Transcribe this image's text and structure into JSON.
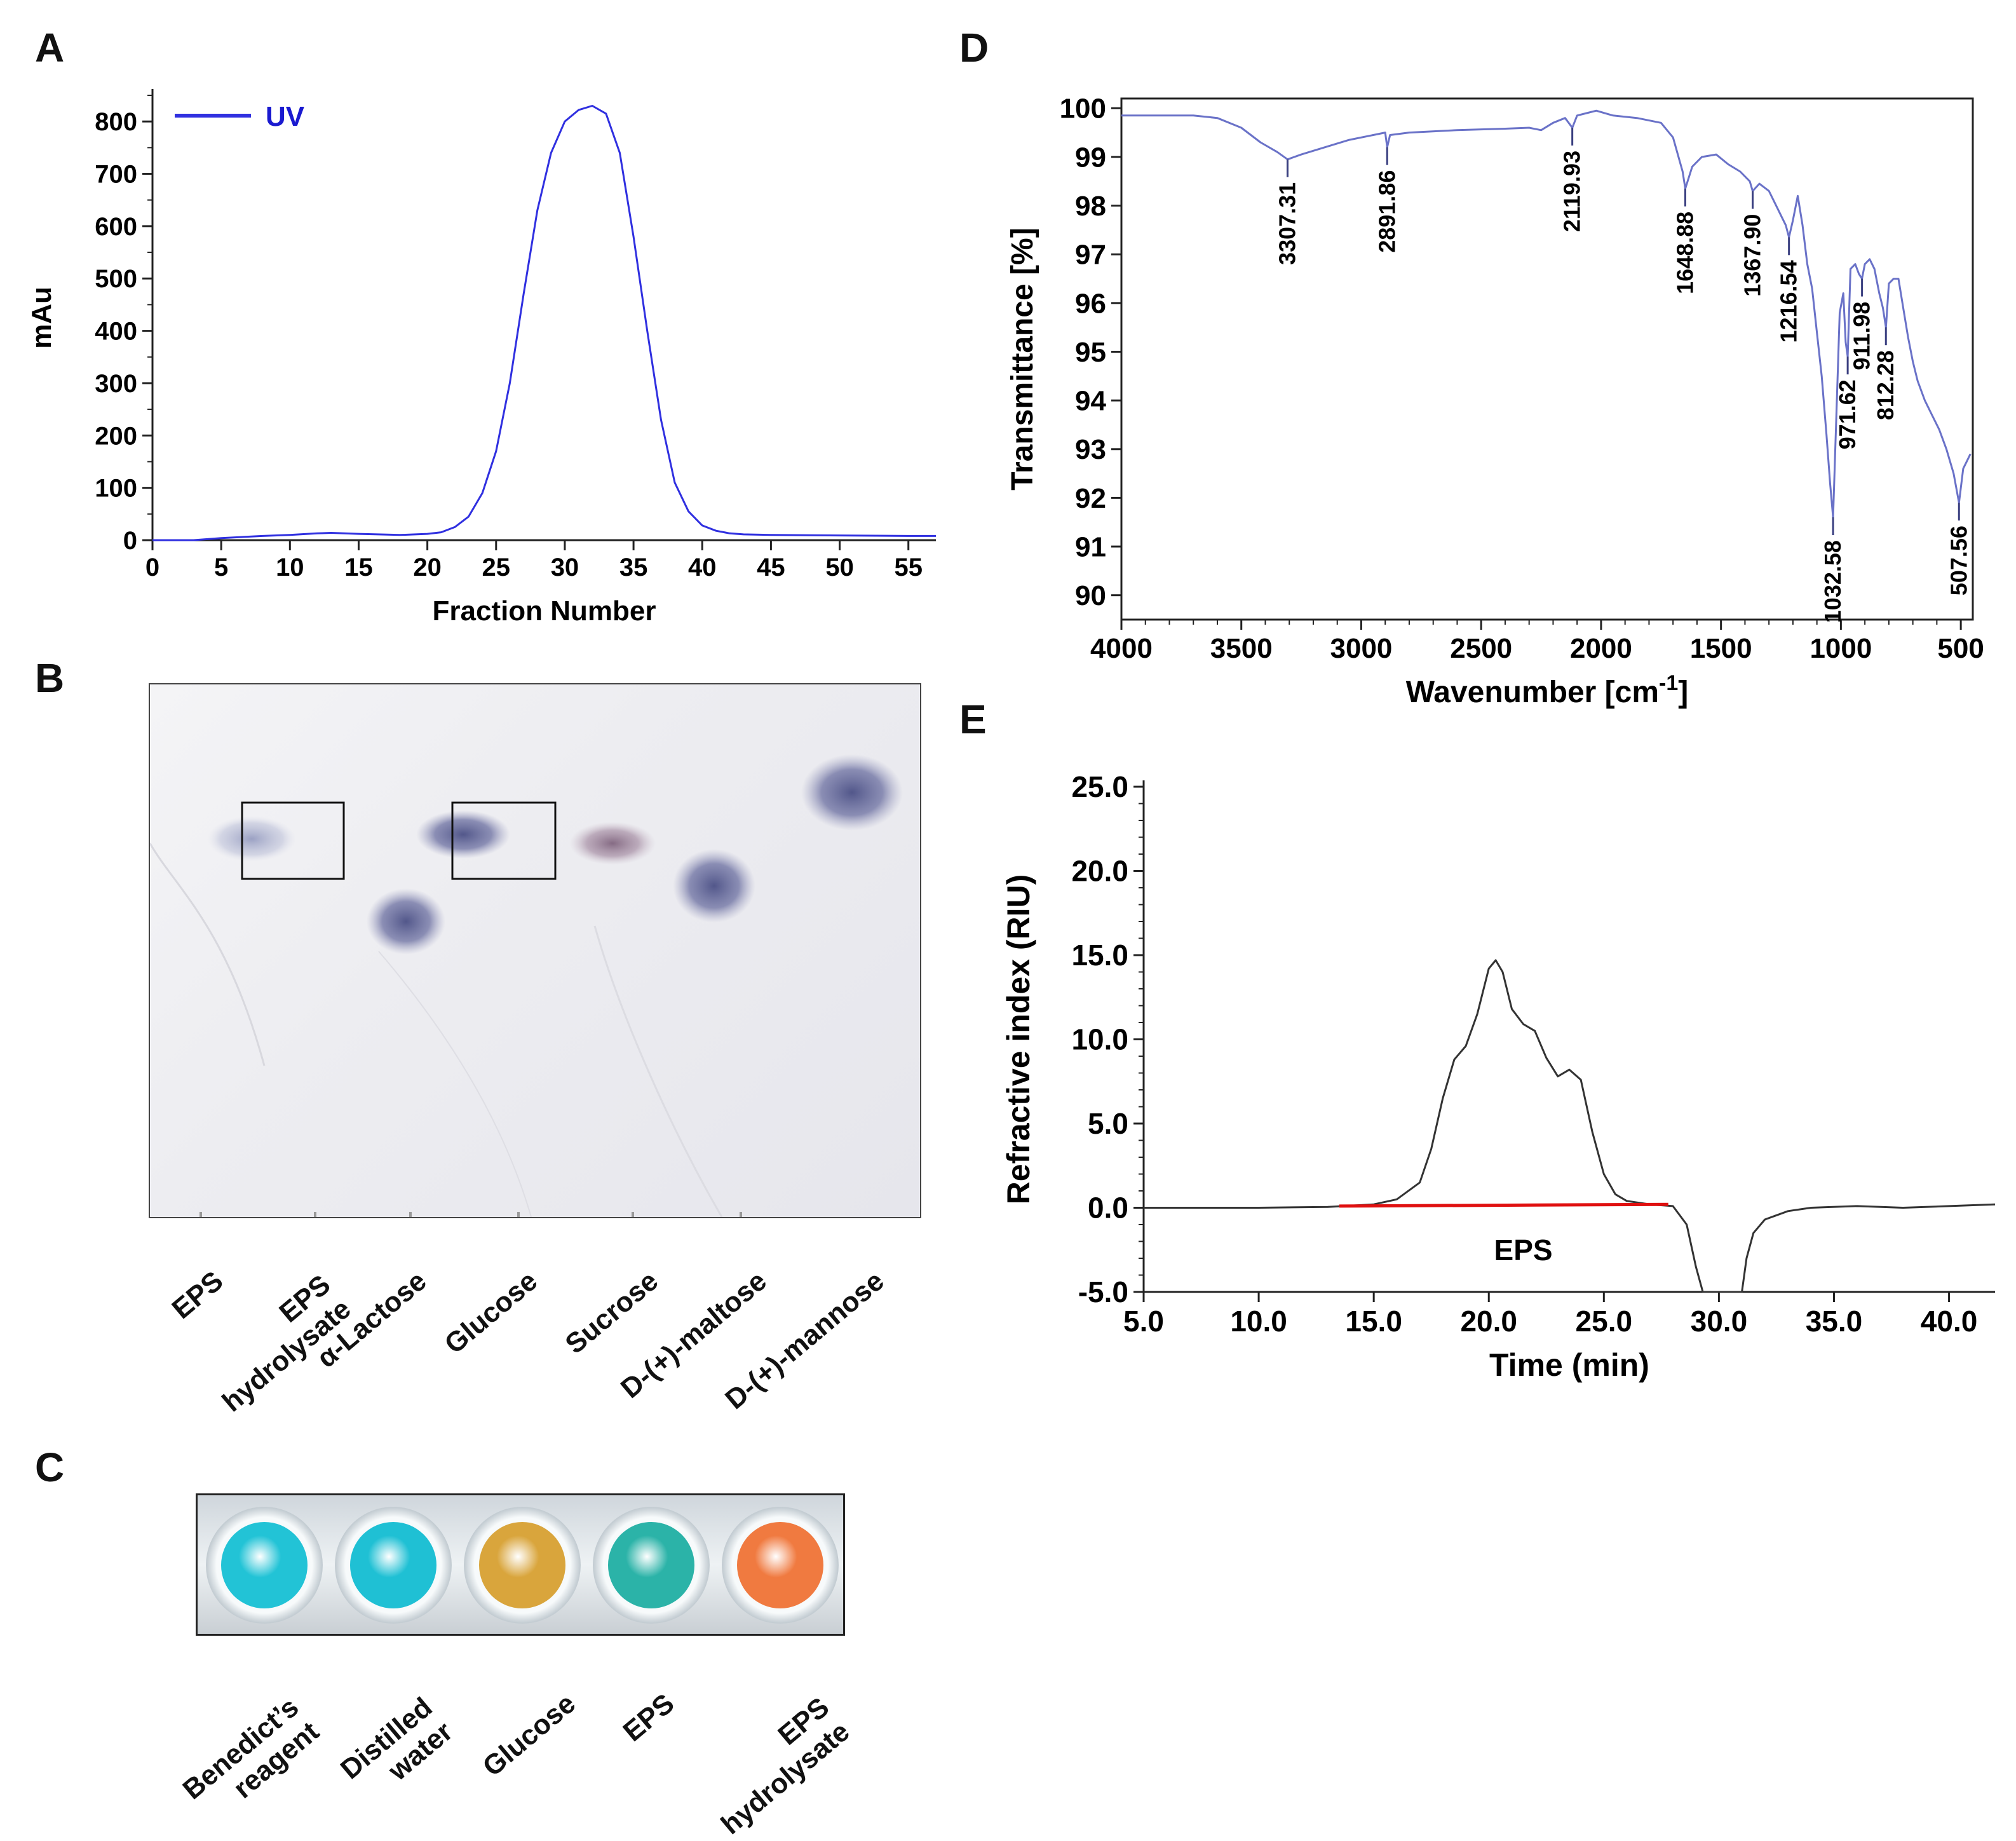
{
  "panels": {
    "A": "A",
    "B": "B",
    "C": "C",
    "D": "D",
    "E": "E"
  },
  "colors": {
    "uv_line": "#3030e0",
    "ftir_line": "#6a72c8",
    "ri_line": "#333333",
    "baseline": "#e01010",
    "legend_text": "#1a1ad0"
  },
  "chart_data": [
    {
      "id": "A",
      "type": "line",
      "title": "",
      "xlabel": "Fraction Number",
      "ylabel": "mAu",
      "xlim": [
        0,
        57
      ],
      "ylim": [
        0,
        850
      ],
      "xticks": [
        "0",
        "5",
        "10",
        "15",
        "20",
        "25",
        "30",
        "35",
        "40",
        "45",
        "50",
        "55"
      ],
      "yticks": [
        "0",
        "100",
        "200",
        "300",
        "400",
        "500",
        "600",
        "700",
        "800"
      ],
      "legend": {
        "label": "UV",
        "position": "top-left"
      },
      "series": [
        {
          "name": "UV",
          "x": [
            0,
            3,
            5,
            8,
            10,
            12,
            13,
            15,
            18,
            20,
            21,
            22,
            23,
            24,
            25,
            26,
            27,
            28,
            29,
            30,
            31,
            32,
            33,
            34,
            35,
            36,
            37,
            38,
            39,
            40,
            41,
            42,
            43,
            45,
            50,
            55,
            57
          ],
          "y": [
            0,
            0,
            4,
            8,
            10,
            13,
            14,
            12,
            10,
            12,
            15,
            25,
            45,
            90,
            170,
            300,
            470,
            630,
            740,
            800,
            822,
            830,
            815,
            740,
            580,
            400,
            230,
            110,
            55,
            28,
            18,
            13,
            11,
            10,
            9,
            8,
            8
          ]
        }
      ]
    },
    {
      "id": "D",
      "type": "line",
      "title": "",
      "xlabel": "Wavenumber [cm",
      "xlabel_sup": "-1",
      "xlabel_end": "]",
      "ylabel": "Transmittance [%]",
      "xlim": [
        4000,
        450
      ],
      "ylim": [
        89.5,
        100.2
      ],
      "xticks": [
        "4000",
        "3500",
        "3000",
        "2500",
        "2000",
        "1500",
        "1000",
        "500"
      ],
      "yticks": [
        "90",
        "91",
        "92",
        "93",
        "94",
        "95",
        "96",
        "97",
        "98",
        "99",
        "100"
      ],
      "series": [
        {
          "name": "FTIR",
          "x": [
            4000,
            3700,
            3600,
            3500,
            3420,
            3350,
            3307.31,
            3250,
            3150,
            3050,
            2950,
            2900,
            2891.86,
            2880,
            2800,
            2600,
            2400,
            2300,
            2250,
            2200,
            2150,
            2119.93,
            2100,
            2060,
            2020,
            1950,
            1850,
            1750,
            1700,
            1660,
            1648.88,
            1620,
            1580,
            1520,
            1470,
            1420,
            1380,
            1367.9,
            1340,
            1300,
            1260,
            1230,
            1216.54,
            1200,
            1180,
            1160,
            1140,
            1120,
            1100,
            1080,
            1060,
            1045,
            1032.58,
            1020,
            1005,
            990,
            980,
            971.62,
            960,
            940,
            925,
            911.98,
            900,
            880,
            860,
            840,
            825,
            812.28,
            800,
            780,
            760,
            740,
            720,
            700,
            680,
            650,
            620,
            590,
            560,
            530,
            507.56,
            490,
            470,
            460
          ],
          "y": [
            99.85,
            99.85,
            99.8,
            99.6,
            99.3,
            99.1,
            98.95,
            99.05,
            99.2,
            99.35,
            99.45,
            99.5,
            99.2,
            99.45,
            99.5,
            99.55,
            99.58,
            99.6,
            99.55,
            99.7,
            99.8,
            99.6,
            99.85,
            99.9,
            99.95,
            99.85,
            99.8,
            99.7,
            99.4,
            98.7,
            98.35,
            98.8,
            99.0,
            99.05,
            98.85,
            98.7,
            98.5,
            98.3,
            98.45,
            98.3,
            97.9,
            97.6,
            97.35,
            97.7,
            98.2,
            97.6,
            96.8,
            96.3,
            95.4,
            94.5,
            93.3,
            92.3,
            91.6,
            93.5,
            95.8,
            96.2,
            95.2,
            94.9,
            96.7,
            96.8,
            96.6,
            96.5,
            96.8,
            96.9,
            96.7,
            96.2,
            95.9,
            95.5,
            96.4,
            96.5,
            96.5,
            95.9,
            95.3,
            94.8,
            94.4,
            94.0,
            93.7,
            93.4,
            93.0,
            92.5,
            91.9,
            92.6,
            92.8,
            92.9
          ]
        }
      ],
      "annotations": [
        {
          "x": 3307.31,
          "y": 98.95,
          "label": "3307.31"
        },
        {
          "x": 2891.86,
          "y": 99.2,
          "label": "2891.86"
        },
        {
          "x": 2119.93,
          "y": 99.6,
          "label": "2119.93"
        },
        {
          "x": 1648.88,
          "y": 98.35,
          "label": "1648.88"
        },
        {
          "x": 1367.9,
          "y": 98.3,
          "label": "1367.90"
        },
        {
          "x": 1216.54,
          "y": 97.35,
          "label": "1216.54"
        },
        {
          "x": 1032.58,
          "y": 91.6,
          "label": "1032.58"
        },
        {
          "x": 971.62,
          "y": 94.9,
          "label": "971.62"
        },
        {
          "x": 911.98,
          "y": 96.5,
          "label": "911.98"
        },
        {
          "x": 812.28,
          "y": 95.5,
          "label": "812.28"
        },
        {
          "x": 507.56,
          "y": 91.9,
          "label": "507.56"
        }
      ]
    },
    {
      "id": "E",
      "type": "line",
      "title": "",
      "xlabel": "Time (min)",
      "ylabel": "Refractive index (RIU)",
      "xlim": [
        5,
        42
      ],
      "ylim": [
        -5,
        25
      ],
      "xticks": [
        "5.0",
        "10.0",
        "15.0",
        "20.0",
        "25.0",
        "30.0",
        "35.0",
        "40.0"
      ],
      "yticks": [
        "-5.0",
        "0.0",
        "5.0",
        "10.0",
        "15.0",
        "20.0",
        "25.0"
      ],
      "annotation": {
        "label": "EPS",
        "x": 21.5,
        "y": -2.5
      },
      "baseline": {
        "x": [
          13.5,
          27.8
        ],
        "y": [
          0.1,
          0.2
        ]
      },
      "series": [
        {
          "name": "RI",
          "x": [
            5,
            10,
            13,
            15,
            16,
            17,
            17.5,
            18,
            18.5,
            19,
            19.5,
            20,
            20.3,
            20.6,
            21,
            21.5,
            22,
            22.5,
            23,
            23.5,
            24,
            24.5,
            25,
            25.5,
            26,
            27,
            28,
            28.6,
            29,
            29.3,
            30,
            31,
            31.2,
            31.5,
            32,
            33,
            34,
            36,
            38,
            40,
            42
          ],
          "y": [
            0,
            0,
            0.05,
            0.2,
            0.5,
            1.5,
            3.5,
            6.5,
            8.8,
            9.6,
            11.5,
            14.2,
            14.7,
            14.0,
            11.8,
            10.9,
            10.5,
            8.9,
            7.8,
            8.2,
            7.6,
            4.5,
            2.0,
            0.8,
            0.4,
            0.2,
            0.1,
            -1,
            -3.5,
            -5,
            -5,
            -5,
            -3,
            -1.5,
            -0.7,
            -0.2,
            0,
            0.1,
            0,
            0.1,
            0.2
          ]
        }
      ]
    }
  ],
  "panel_b": {
    "lanes": [
      {
        "line1": "EPS",
        "line2": ""
      },
      {
        "line1": "EPS",
        "line2": "hydrolysate"
      },
      {
        "line1": "α-Lactose",
        "line2": ""
      },
      {
        "line1": "Glucose",
        "line2": ""
      },
      {
        "line1": "Sucrose",
        "line2": ""
      },
      {
        "line1": "D-(+)-maltose",
        "line2": ""
      },
      {
        "line1": "D-(+)-mannose",
        "line2": ""
      }
    ]
  },
  "panel_c": {
    "wells": [
      {
        "line1": "Benedict’s",
        "line2": "reagent",
        "color": "#22c3d6"
      },
      {
        "line1": "Distilled",
        "line2": "water",
        "color": "#1fc0d4"
      },
      {
        "line1": "Glucose",
        "line2": "",
        "color": "#d9a53c"
      },
      {
        "line1": "EPS",
        "line2": "",
        "color": "#2bb3a8"
      },
      {
        "line1": "EPS",
        "line2": "hydrolysate",
        "color": "#f07a40"
      }
    ]
  }
}
